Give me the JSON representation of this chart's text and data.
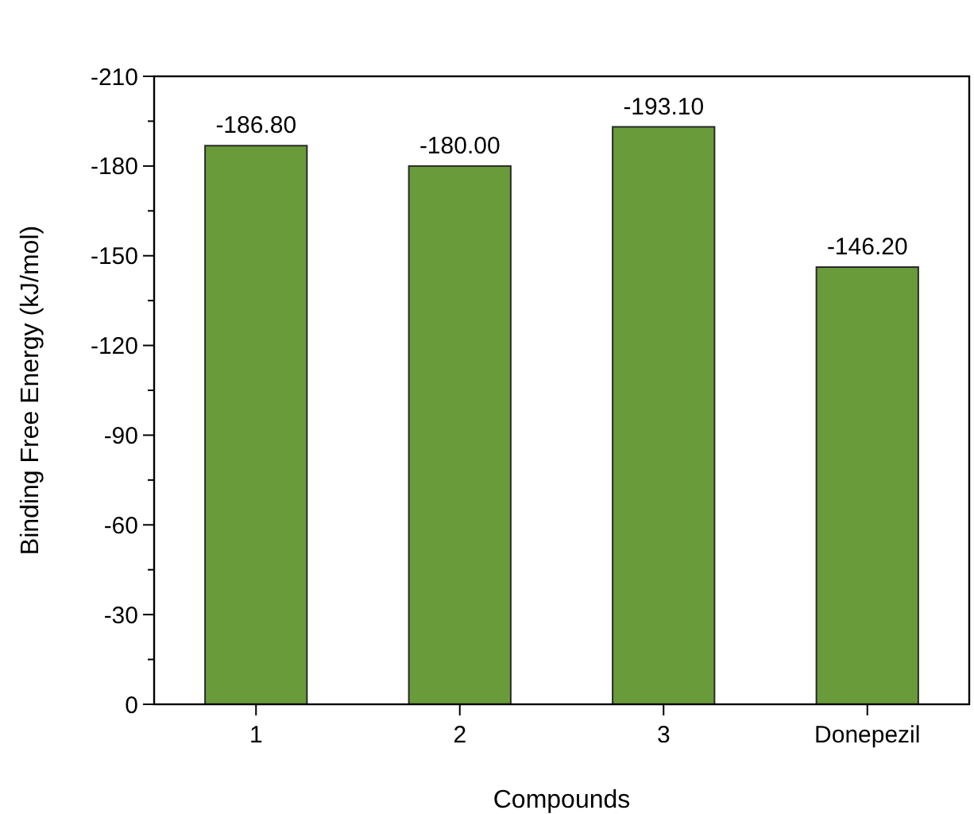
{
  "chart_data": {
    "type": "bar",
    "xlabel": "Compounds",
    "ylabel": "Binding Free Energy (kJ/mol)",
    "categories": [
      "1",
      "2",
      "3",
      "Donepezil"
    ],
    "values": [
      -186.8,
      -180.0,
      -193.1,
      -146.2
    ],
    "value_labels": [
      "-186.80",
      "-180.00",
      "-193.10",
      "-146.20"
    ],
    "color": "#6a9b3a",
    "ylim": [
      0,
      -210
    ],
    "yticks": [
      0,
      {
        "value": -15,
        "label": null
      },
      -30,
      {
        "value": -45,
        "label": null
      },
      -60,
      {
        "value": -75,
        "label": null
      },
      -90,
      {
        "value": -105,
        "label": null
      },
      -120,
      {
        "value": -135,
        "label": null
      },
      -150,
      {
        "value": -165,
        "label": null
      },
      -180,
      {
        "value": -195,
        "label": null
      },
      -210
    ],
    "grid": false
  }
}
